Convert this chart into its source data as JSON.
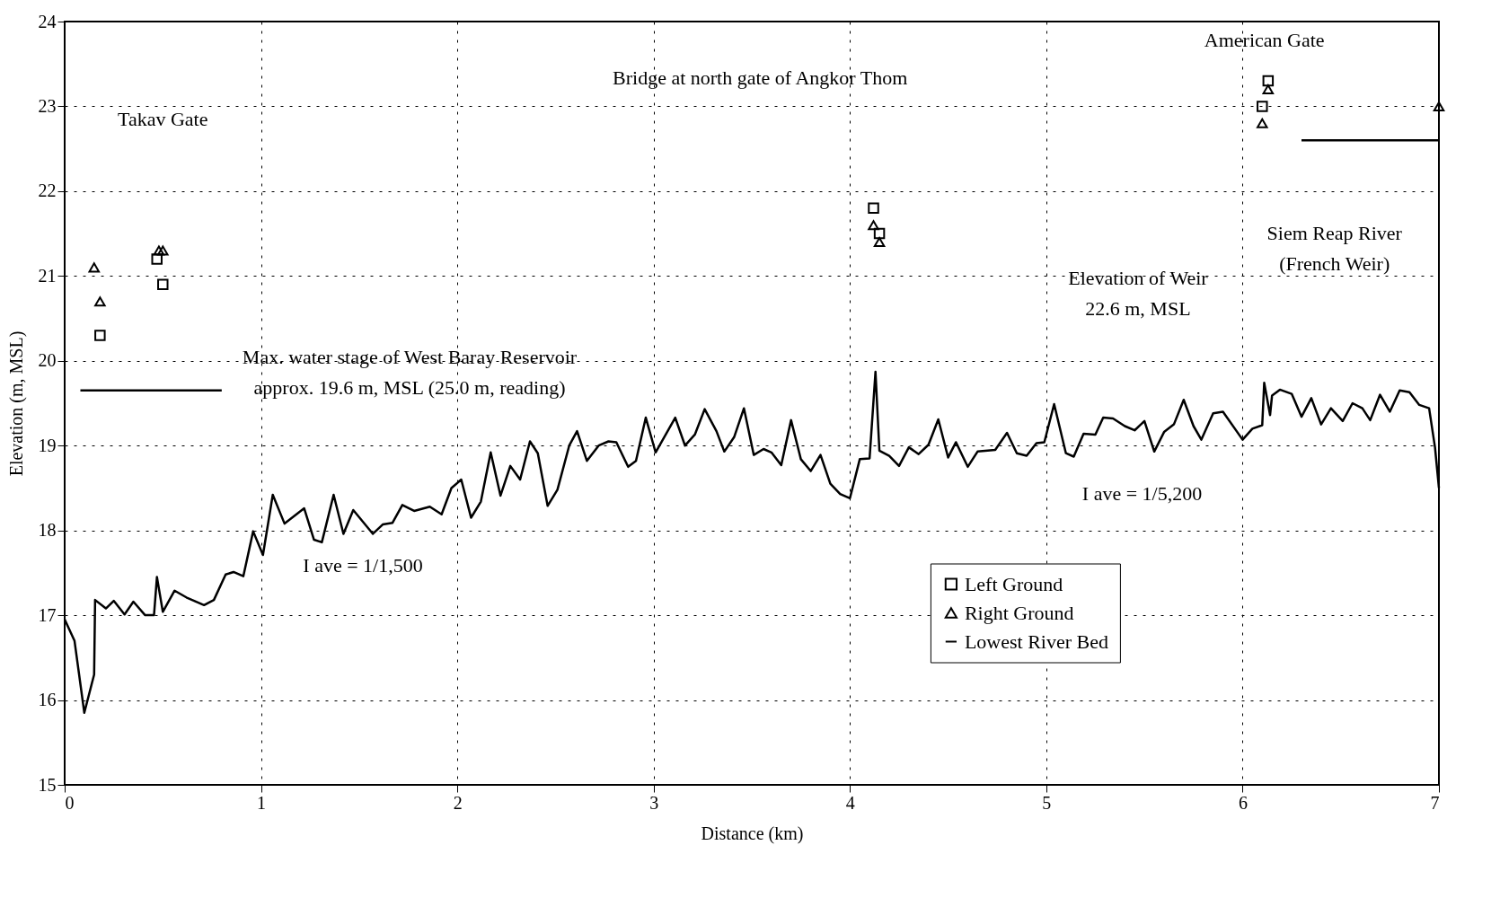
{
  "chart_data": {
    "type": "line",
    "xlabel": "Distance (km)",
    "ylabel": "Elevation (m, MSL)",
    "xlim": [
      0,
      7
    ],
    "ylim": [
      15,
      24
    ],
    "xticks": [
      0,
      1,
      2,
      3,
      4,
      5,
      6,
      7
    ],
    "yticks": [
      15,
      16,
      17,
      18,
      19,
      20,
      21,
      22,
      23,
      24
    ],
    "grid": true,
    "legend": "bottom right",
    "series": [
      {
        "name": "Left Ground",
        "type": "scatter",
        "marker": "square",
        "color": "#000000",
        "x": [
          0.18,
          0.47,
          0.5,
          4.12,
          4.15,
          6.1,
          6.13
        ],
        "values": [
          20.3,
          21.2,
          20.9,
          21.8,
          21.5,
          23.0,
          23.3
        ]
      },
      {
        "name": "Right Ground",
        "type": "scatter",
        "marker": "triangle",
        "color": "#000000",
        "x": [
          0.15,
          0.18,
          0.48,
          0.5,
          4.12,
          4.15,
          6.1,
          6.13,
          7.0
        ],
        "values": [
          21.1,
          20.7,
          21.3,
          21.3,
          21.6,
          21.4,
          22.8,
          23.2,
          23.0
        ]
      },
      {
        "name": "Lowest River Bed",
        "color": "#000000",
        "x": [
          0,
          0.05,
          0.1,
          0.15,
          0.155,
          0.21,
          0.25,
          0.305,
          0.35,
          0.41,
          0.455,
          0.47,
          0.5,
          0.56,
          0.62,
          0.71,
          0.76,
          0.82,
          0.86,
          0.91,
          0.96,
          1.01,
          1.06,
          1.12,
          1.22,
          1.27,
          1.31,
          1.37,
          1.42,
          1.47,
          1.57,
          1.62,
          1.67,
          1.72,
          1.78,
          1.86,
          1.92,
          1.97,
          2.02,
          2.07,
          2.12,
          2.17,
          2.22,
          2.27,
          2.32,
          2.37,
          2.41,
          2.46,
          2.51,
          2.57,
          2.61,
          2.66,
          2.72,
          2.77,
          2.81,
          2.87,
          2.91,
          2.96,
          3.01,
          3.11,
          3.16,
          3.21,
          3.26,
          3.32,
          3.36,
          3.41,
          3.46,
          3.51,
          3.56,
          3.6,
          3.65,
          3.7,
          3.75,
          3.8,
          3.85,
          3.9,
          3.95,
          4.0,
          4.05,
          4.1,
          4.13,
          4.15,
          4.2,
          4.25,
          4.3,
          4.35,
          4.4,
          4.45,
          4.5,
          4.54,
          4.6,
          4.65,
          4.74,
          4.8,
          4.85,
          4.9,
          4.95,
          4.99,
          5.04,
          5.1,
          5.14,
          5.19,
          5.25,
          5.29,
          5.34,
          5.4,
          5.45,
          5.5,
          5.55,
          5.6,
          5.65,
          5.7,
          5.75,
          5.79,
          5.85,
          5.9,
          6.0,
          6.05,
          6.1,
          6.11,
          6.14,
          6.15,
          6.19,
          6.25,
          6.3,
          6.35,
          6.4,
          6.45,
          6.51,
          6.56,
          6.61,
          6.65,
          6.7,
          6.75,
          6.8,
          6.85,
          6.9,
          6.95,
          6.98,
          7.0
        ],
        "values": [
          16.95,
          16.7,
          15.85,
          16.3,
          17.18,
          17.08,
          17.17,
          17.01,
          17.16,
          17.0,
          17.0,
          17.45,
          17.04,
          17.29,
          17.21,
          17.12,
          17.18,
          17.48,
          17.51,
          17.46,
          17.99,
          17.71,
          18.42,
          18.08,
          18.26,
          17.89,
          17.86,
          18.42,
          17.96,
          18.24,
          17.96,
          18.07,
          18.09,
          18.3,
          18.23,
          18.28,
          18.19,
          18.5,
          18.6,
          18.15,
          18.34,
          18.92,
          18.41,
          18.76,
          18.6,
          19.05,
          18.91,
          18.29,
          18.48,
          19.0,
          19.17,
          18.82,
          19.0,
          19.05,
          19.04,
          18.75,
          18.82,
          19.33,
          18.92,
          19.33,
          19.0,
          19.13,
          19.43,
          19.17,
          18.93,
          19.1,
          19.44,
          18.89,
          18.96,
          18.92,
          18.77,
          19.3,
          18.84,
          18.7,
          18.89,
          18.55,
          18.43,
          18.38,
          18.84,
          18.85,
          19.87,
          18.94,
          18.88,
          18.76,
          18.98,
          18.9,
          19.01,
          19.31,
          18.86,
          19.04,
          18.75,
          18.93,
          18.95,
          19.15,
          18.91,
          18.88,
          19.03,
          19.04,
          19.49,
          18.91,
          18.87,
          19.14,
          19.13,
          19.33,
          19.32,
          19.23,
          19.18,
          19.29,
          18.93,
          19.16,
          19.25,
          19.54,
          19.23,
          19.07,
          19.38,
          19.4,
          19.07,
          19.2,
          19.24,
          19.74,
          19.36,
          19.59,
          19.66,
          19.61,
          19.34,
          19.56,
          19.25,
          19.44,
          19.29,
          19.5,
          19.44,
          19.3,
          19.6,
          19.4,
          19.65,
          19.63,
          19.48,
          19.44,
          18.98,
          18.5
        ]
      },
      {
        "color": "#000000",
        "x": [
          0.08,
          0.8
        ],
        "values": [
          19.65,
          19.65
        ]
      },
      {
        "color": "#000000",
        "x": [
          6.3,
          7.0
        ],
        "values": [
          22.6,
          22.6
        ]
      }
    ],
    "annotations": [
      "Takav Gate",
      "Bridge at north gate of Angkor Thom",
      "American Gate",
      "Max. water stage of West Baray Reservoir\napprox. 19.6 m, MSL (25.0 m, reading)",
      "Elevation of Weir\n22.6 m, MSL",
      "Siem Reap River\n(French Weir)",
      "I ave = 1/1,500",
      "I ave = 1/5,200"
    ]
  }
}
